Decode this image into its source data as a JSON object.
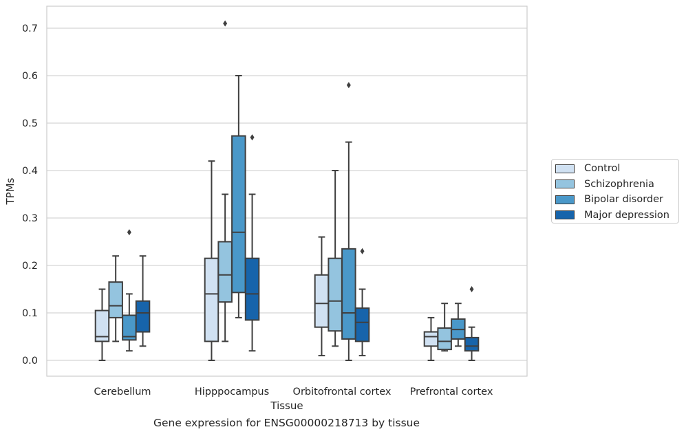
{
  "chart_data": {
    "type": "box",
    "title": "",
    "caption": "Gene expression for ENSG00000218713 by tissue",
    "xlabel": "Tissue",
    "ylabel": "TPMs",
    "ylim": [
      -0.034,
      0.745
    ],
    "yticks": [
      0.0,
      0.1,
      0.2,
      0.3,
      0.4,
      0.5,
      0.6,
      0.7
    ],
    "ytick_labels": [
      "0.0",
      "0.1",
      "0.2",
      "0.3",
      "0.4",
      "0.5",
      "0.6",
      "0.7"
    ],
    "grid": "horizontal",
    "legend_position": "right",
    "categories": [
      "Cerebellum",
      "Hipppocampus",
      "Orbitofrontal cortex",
      "Prefrontal cortex"
    ],
    "series": [
      {
        "name": "Control",
        "color": "#d0e1f2",
        "boxes": [
          {
            "whisker_low": 0.0,
            "q1": 0.04,
            "median": 0.05,
            "q3": 0.105,
            "whisker_high": 0.15,
            "outliers": []
          },
          {
            "whisker_low": 0.0,
            "q1": 0.04,
            "median": 0.14,
            "q3": 0.215,
            "whisker_high": 0.42,
            "outliers": []
          },
          {
            "whisker_low": 0.01,
            "q1": 0.07,
            "median": 0.12,
            "q3": 0.18,
            "whisker_high": 0.26,
            "outliers": []
          },
          {
            "whisker_low": 0.0,
            "q1": 0.03,
            "median": 0.05,
            "q3": 0.06,
            "whisker_high": 0.09,
            "outliers": []
          }
        ]
      },
      {
        "name": "Schizophrenia",
        "color": "#94c4df",
        "boxes": [
          {
            "whisker_low": 0.04,
            "q1": 0.09,
            "median": 0.115,
            "q3": 0.165,
            "whisker_high": 0.22,
            "outliers": []
          },
          {
            "whisker_low": 0.04,
            "q1": 0.123,
            "median": 0.18,
            "q3": 0.25,
            "whisker_high": 0.35,
            "outliers": [
              0.71
            ]
          },
          {
            "whisker_low": 0.03,
            "q1": 0.062,
            "median": 0.125,
            "q3": 0.215,
            "whisker_high": 0.4,
            "outliers": []
          },
          {
            "whisker_low": 0.02,
            "q1": 0.023,
            "median": 0.04,
            "q3": 0.068,
            "whisker_high": 0.12,
            "outliers": []
          }
        ]
      },
      {
        "name": "Bipolar disorder",
        "color": "#4a98c9",
        "boxes": [
          {
            "whisker_low": 0.02,
            "q1": 0.043,
            "median": 0.05,
            "q3": 0.095,
            "whisker_high": 0.14,
            "outliers": [
              0.27
            ]
          },
          {
            "whisker_low": 0.09,
            "q1": 0.143,
            "median": 0.27,
            "q3": 0.473,
            "whisker_high": 0.6,
            "outliers": []
          },
          {
            "whisker_low": 0.0,
            "q1": 0.045,
            "median": 0.1,
            "q3": 0.235,
            "whisker_high": 0.46,
            "outliers": [
              0.58
            ]
          },
          {
            "whisker_low": 0.03,
            "q1": 0.045,
            "median": 0.065,
            "q3": 0.087,
            "whisker_high": 0.12,
            "outliers": []
          }
        ]
      },
      {
        "name": "Major depression",
        "color": "#1764ab",
        "boxes": [
          {
            "whisker_low": 0.03,
            "q1": 0.06,
            "median": 0.1,
            "q3": 0.125,
            "whisker_high": 0.22,
            "outliers": []
          },
          {
            "whisker_low": 0.02,
            "q1": 0.085,
            "median": 0.14,
            "q3": 0.215,
            "whisker_high": 0.35,
            "outliers": [
              0.47
            ]
          },
          {
            "whisker_low": 0.01,
            "q1": 0.04,
            "median": 0.08,
            "q3": 0.11,
            "whisker_high": 0.15,
            "outliers": [
              0.23
            ]
          },
          {
            "whisker_low": 0.0,
            "q1": 0.02,
            "median": 0.03,
            "q3": 0.048,
            "whisker_high": 0.07,
            "outliers": [
              0.15
            ]
          }
        ]
      }
    ]
  }
}
